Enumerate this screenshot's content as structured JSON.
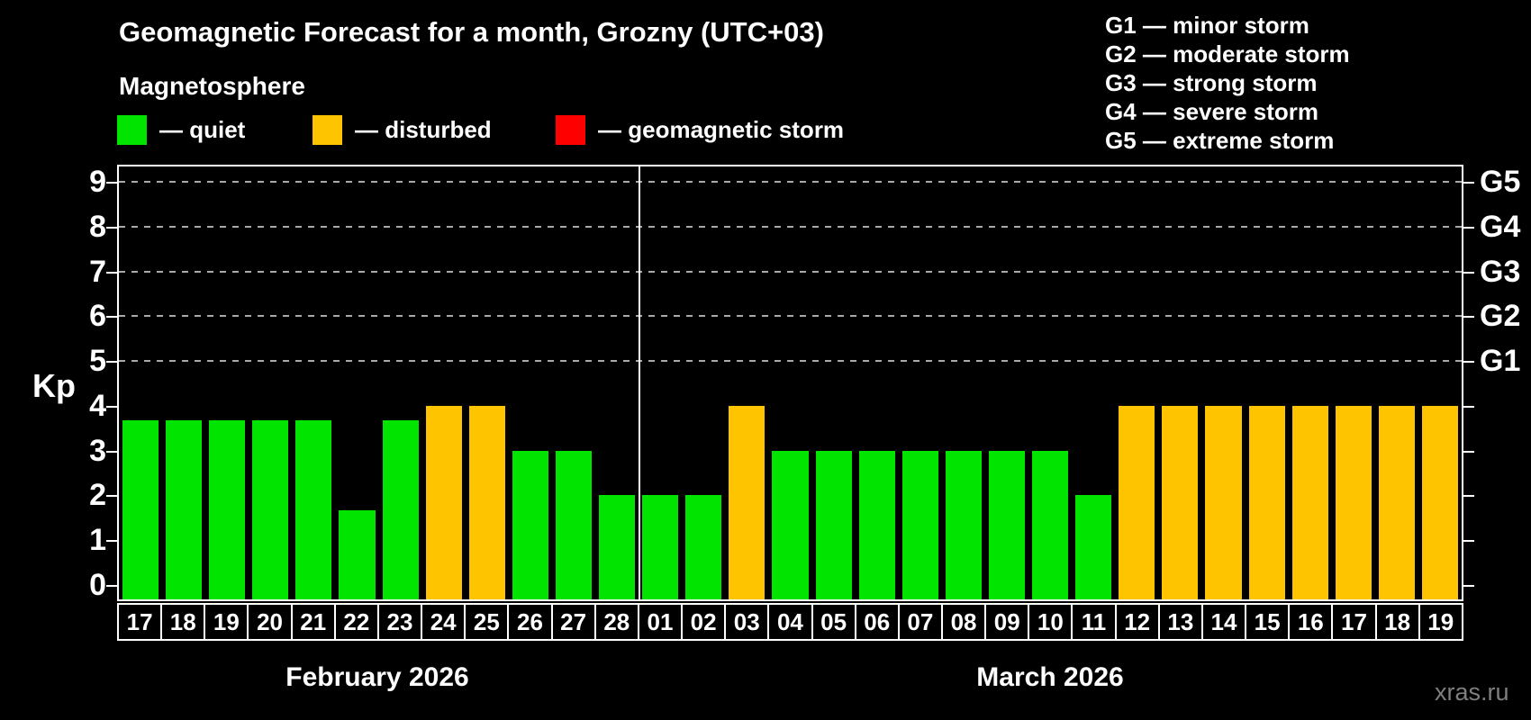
{
  "title": "Geomagnetic Forecast for a month, Grozny (UTC+03)",
  "subtitle": "Magnetosphere",
  "legend": {
    "items": [
      {
        "state": "quiet",
        "label": "— quiet"
      },
      {
        "state": "disturbed",
        "label": "— disturbed"
      },
      {
        "state": "storm",
        "label": "— geomagnetic storm"
      }
    ]
  },
  "g_scale_legend": [
    "G1 — minor storm",
    "G2 — moderate storm",
    "G3 — strong storm",
    "G4 — severe storm",
    "G5 — extreme storm"
  ],
  "watermark": "xras.ru",
  "colors": {
    "quiet": "#00E400",
    "disturbed": "#FFC400",
    "storm": "#FF0000",
    "grid": "#A9A9A9",
    "axis": "#FFFFFF",
    "background": "#000000",
    "watermark": "#7F7F7F"
  },
  "chart_data": {
    "type": "bar",
    "ylabel": "Kp",
    "ylim": [
      0,
      9
    ],
    "yticks": [
      0,
      1,
      2,
      3,
      4,
      5,
      6,
      7,
      8,
      9
    ],
    "gridlines_at_kp": [
      5,
      6,
      7,
      8,
      9
    ],
    "grid": "dashed horizontal at storm levels only",
    "legend_position": "top",
    "right_axis": [
      {
        "kp": 5,
        "label": "G1"
      },
      {
        "kp": 6,
        "label": "G2"
      },
      {
        "kp": 7,
        "label": "G3"
      },
      {
        "kp": 8,
        "label": "G4"
      },
      {
        "kp": 9,
        "label": "G5"
      }
    ],
    "months": [
      {
        "label": "February 2026",
        "days": [
          {
            "day": "17",
            "kp": 3.67,
            "state": "quiet"
          },
          {
            "day": "18",
            "kp": 3.67,
            "state": "quiet"
          },
          {
            "day": "19",
            "kp": 3.67,
            "state": "quiet"
          },
          {
            "day": "20",
            "kp": 3.67,
            "state": "quiet"
          },
          {
            "day": "21",
            "kp": 3.67,
            "state": "quiet"
          },
          {
            "day": "22",
            "kp": 1.67,
            "state": "quiet"
          },
          {
            "day": "23",
            "kp": 3.67,
            "state": "quiet"
          },
          {
            "day": "24",
            "kp": 4,
            "state": "disturbed"
          },
          {
            "day": "25",
            "kp": 4,
            "state": "disturbed"
          },
          {
            "day": "26",
            "kp": 3,
            "state": "quiet"
          },
          {
            "day": "27",
            "kp": 3,
            "state": "quiet"
          },
          {
            "day": "28",
            "kp": 2,
            "state": "quiet"
          }
        ]
      },
      {
        "label": "March 2026",
        "days": [
          {
            "day": "01",
            "kp": 2,
            "state": "quiet"
          },
          {
            "day": "02",
            "kp": 2,
            "state": "quiet"
          },
          {
            "day": "03",
            "kp": 4,
            "state": "disturbed"
          },
          {
            "day": "04",
            "kp": 3,
            "state": "quiet"
          },
          {
            "day": "05",
            "kp": 3,
            "state": "quiet"
          },
          {
            "day": "06",
            "kp": 3,
            "state": "quiet"
          },
          {
            "day": "07",
            "kp": 3,
            "state": "quiet"
          },
          {
            "day": "08",
            "kp": 3,
            "state": "quiet"
          },
          {
            "day": "09",
            "kp": 3,
            "state": "quiet"
          },
          {
            "day": "10",
            "kp": 3,
            "state": "quiet"
          },
          {
            "day": "11",
            "kp": 2,
            "state": "quiet"
          },
          {
            "day": "12",
            "kp": 4,
            "state": "disturbed"
          },
          {
            "day": "13",
            "kp": 4,
            "state": "disturbed"
          },
          {
            "day": "14",
            "kp": 4,
            "state": "disturbed"
          },
          {
            "day": "15",
            "kp": 4,
            "state": "disturbed"
          },
          {
            "day": "16",
            "kp": 4,
            "state": "disturbed"
          },
          {
            "day": "17",
            "kp": 4,
            "state": "disturbed"
          },
          {
            "day": "18",
            "kp": 4,
            "state": "disturbed"
          },
          {
            "day": "19",
            "kp": 4,
            "state": "disturbed"
          }
        ]
      }
    ]
  }
}
